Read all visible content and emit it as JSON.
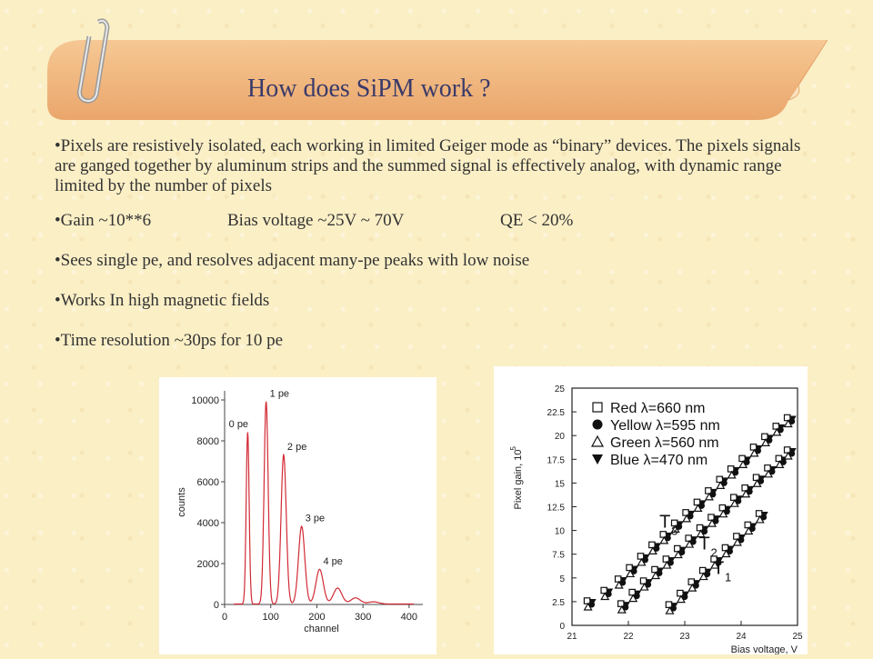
{
  "title": "How does SiPM work ?",
  "bullets": {
    "b1": "•Pixels are resistively isolated, each working in limited Geiger mode as “binary” devices. The pixels signals are ganged together by aluminum strips and the summed signal is effectively analog, with dynamic range limited by the number of pixels",
    "b2_gain": "•Gain ~10**6",
    "b2_bias": "Bias voltage ~25V ~ 70V",
    "b2_qe": "QE < 20%",
    "b3": "•Sees single pe, and resolves adjacent many-pe peaks with low noise",
    "b4": "•Works In high magnetic fields",
    "b5": "•Time resolution ~30ps for 10 pe"
  },
  "colors": {
    "banner": "#f3b880",
    "title_text": "#3a3a6a",
    "spectrum_line": "#d22a35"
  },
  "chart_data": [
    {
      "type": "line",
      "xlabel": "channel",
      "ylabel": "counts",
      "xlim": [
        0,
        420
      ],
      "ylim": [
        0,
        10000
      ],
      "xticks": [
        "0",
        "100",
        "200",
        "300",
        "400"
      ],
      "yticks": [
        "0",
        "2000",
        "4000",
        "6000",
        "8000",
        "10000"
      ],
      "peaks": [
        {
          "label": "0 pe",
          "x": 50,
          "y": 8400
        },
        {
          "label": "1 pe",
          "x": 90,
          "y": 9900
        },
        {
          "label": "2 pe",
          "x": 128,
          "y": 7300
        },
        {
          "label": "3 pe",
          "x": 167,
          "y": 3800
        },
        {
          "label": "4 pe",
          "x": 206,
          "y": 1700
        },
        {
          "label": "",
          "x": 245,
          "y": 780
        },
        {
          "label": "",
          "x": 284,
          "y": 300
        },
        {
          "label": "",
          "x": 323,
          "y": 110
        }
      ]
    },
    {
      "type": "scatter",
      "xlabel": "Bias voltage, V",
      "ylabel": "Pixel gain, 10",
      "ylabel_sup": "5",
      "xlim": [
        21,
        25
      ],
      "ylim": [
        0,
        25
      ],
      "xticks": [
        "21",
        "22",
        "23",
        "24",
        "25"
      ],
      "yticks": [
        "0",
        "2.5",
        "5",
        "7.5",
        "10",
        "12.5",
        "15",
        "17.5",
        "20",
        "22.5",
        "25"
      ],
      "legend": [
        "Red λ=660 nm",
        "Yellow λ=595 nm",
        "Green λ=560 nm",
        "Blue λ=470 nm"
      ],
      "annotations": [
        {
          "text": "T",
          "sub": "3",
          "x": 22.55,
          "y": 10.3
        },
        {
          "text": "T",
          "sub": "2",
          "x": 23.25,
          "y": 8.0
        },
        {
          "text": "T",
          "sub": "1",
          "x": 23.5,
          "y": 5.4
        }
      ],
      "series": [
        {
          "name": "T3",
          "x": [
            21.3,
            21.6,
            21.85,
            22.05,
            22.25,
            22.45,
            22.65,
            22.85,
            23.05,
            23.25,
            23.45,
            23.65,
            23.85,
            24.05,
            24.25,
            24.45,
            24.65,
            24.85
          ],
          "y": [
            2.3,
            3.4,
            4.6,
            5.8,
            7.0,
            8.2,
            9.3,
            10.5,
            11.6,
            12.7,
            13.9,
            15.1,
            16.2,
            17.3,
            18.5,
            19.6,
            20.7,
            21.6
          ]
        },
        {
          "name": "T2",
          "x": [
            21.9,
            22.1,
            22.3,
            22.5,
            22.7,
            22.9,
            23.1,
            23.3,
            23.5,
            23.7,
            23.9,
            24.1,
            24.3,
            24.5,
            24.7,
            24.85
          ],
          "y": [
            2.0,
            3.2,
            4.4,
            5.6,
            6.7,
            7.8,
            8.9,
            10.0,
            11.1,
            12.1,
            13.2,
            14.2,
            15.3,
            16.3,
            17.3,
            18.2
          ]
        },
        {
          "name": "T1",
          "x": [
            22.75,
            22.95,
            23.15,
            23.35,
            23.55,
            23.75,
            23.95,
            24.15,
            24.35
          ],
          "y": [
            1.9,
            3.1,
            4.3,
            5.5,
            6.7,
            7.9,
            9.1,
            10.3,
            11.5
          ]
        }
      ]
    }
  ]
}
